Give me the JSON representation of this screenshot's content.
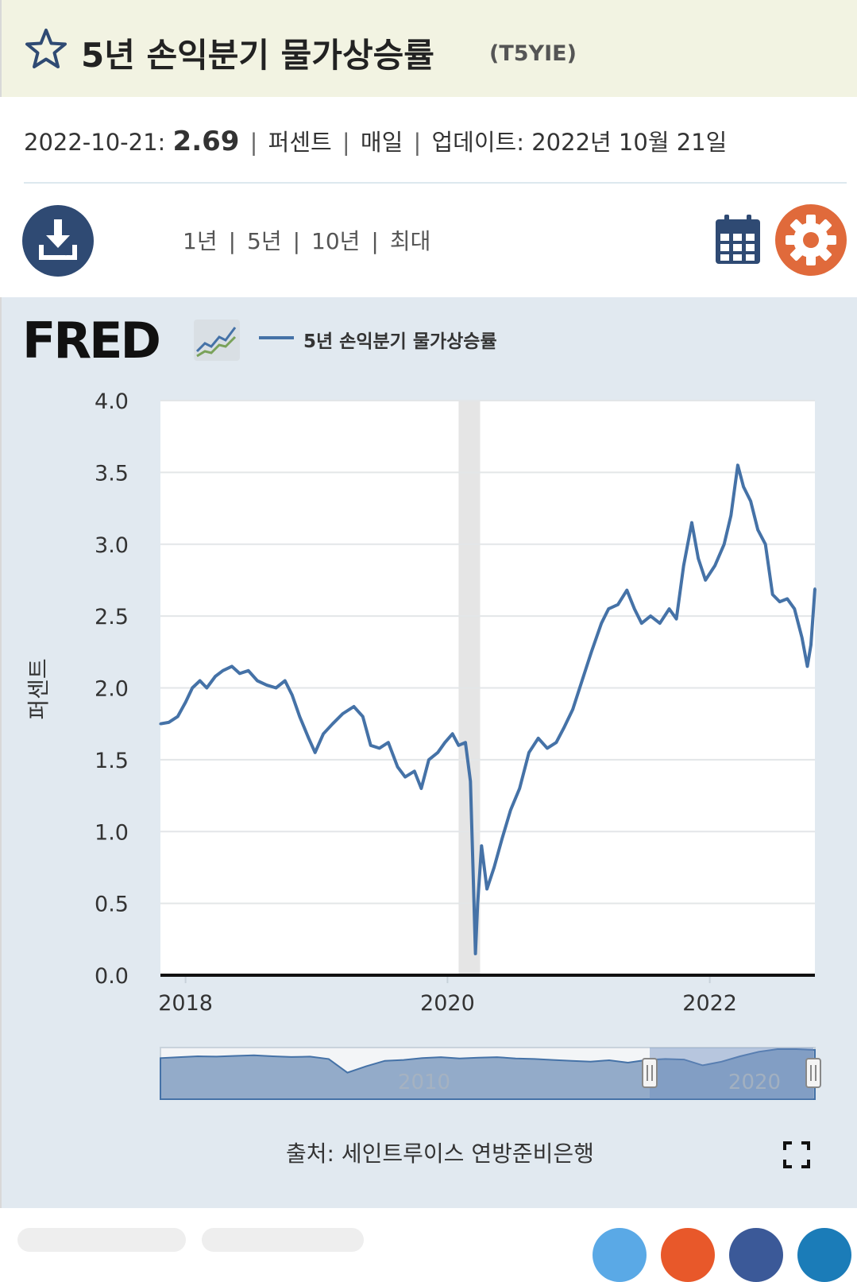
{
  "header": {
    "title": "5년 손익분기 물가상승률",
    "series_code": "(T5YIE)"
  },
  "meta": {
    "date": "2022-10-21:",
    "value": "2.69",
    "units": "퍼센트",
    "frequency": "매일",
    "updated_label": "업데이트:",
    "updated_value": "2022년 10월 21일",
    "sep": "|"
  },
  "toolbar": {
    "ranges": [
      "1년",
      "5년",
      "10년",
      "최대"
    ],
    "download_icon": "download-icon",
    "calendar_icon": "calendar-icon",
    "settings_icon": "gear-icon"
  },
  "logo": {
    "text": "FRED"
  },
  "colors": {
    "series": "#4572a7",
    "recession": "#e5e5e5",
    "settings": "#e06a3b",
    "download": "#2f4a73",
    "panel": "#e1e9f0"
  },
  "chart_data": {
    "type": "line",
    "title": "",
    "xlabel": "",
    "ylabel": "퍼센트",
    "ylim": [
      0,
      4.0
    ],
    "y_ticks": [
      "0.0",
      "0.5",
      "1.0",
      "1.5",
      "2.0",
      "2.5",
      "3.0",
      "3.5",
      "4.0"
    ],
    "x_ticks": [
      "2018",
      "2020",
      "2022"
    ],
    "grid": true,
    "legend_position": "top",
    "recession_shading": [
      [
        "2020-02",
        "2020-04"
      ]
    ],
    "series": [
      {
        "name": "5년 손익분기 물가상승률",
        "color": "#4572a7",
        "points": [
          [
            "2017-10-23",
            1.75
          ],
          [
            "2017-11-15",
            1.76
          ],
          [
            "2017-12-10",
            1.8
          ],
          [
            "2018-01-01",
            1.9
          ],
          [
            "2018-01-20",
            2.0
          ],
          [
            "2018-02-10",
            2.05
          ],
          [
            "2018-03-01",
            2.0
          ],
          [
            "2018-03-25",
            2.08
          ],
          [
            "2018-04-15",
            2.12
          ],
          [
            "2018-05-10",
            2.15
          ],
          [
            "2018-06-01",
            2.1
          ],
          [
            "2018-06-25",
            2.12
          ],
          [
            "2018-07-20",
            2.05
          ],
          [
            "2018-08-15",
            2.02
          ],
          [
            "2018-09-10",
            2.0
          ],
          [
            "2018-10-05",
            2.05
          ],
          [
            "2018-10-25",
            1.95
          ],
          [
            "2018-11-15",
            1.8
          ],
          [
            "2018-12-10",
            1.65
          ],
          [
            "2018-12-28",
            1.55
          ],
          [
            "2019-01-20",
            1.68
          ],
          [
            "2019-02-15",
            1.75
          ],
          [
            "2019-03-15",
            1.82
          ],
          [
            "2019-04-15",
            1.87
          ],
          [
            "2019-05-10",
            1.8
          ],
          [
            "2019-06-01",
            1.6
          ],
          [
            "2019-06-25",
            1.58
          ],
          [
            "2019-07-20",
            1.62
          ],
          [
            "2019-08-15",
            1.45
          ],
          [
            "2019-09-05",
            1.38
          ],
          [
            "2019-10-01",
            1.42
          ],
          [
            "2019-10-20",
            1.3
          ],
          [
            "2019-11-10",
            1.5
          ],
          [
            "2019-12-05",
            1.55
          ],
          [
            "2019-12-25",
            1.62
          ],
          [
            "2020-01-15",
            1.68
          ],
          [
            "2020-02-01",
            1.6
          ],
          [
            "2020-02-20",
            1.62
          ],
          [
            "2020-03-05",
            1.35
          ],
          [
            "2020-03-12",
            0.75
          ],
          [
            "2020-03-19",
            0.15
          ],
          [
            "2020-03-25",
            0.5
          ],
          [
            "2020-04-05",
            0.9
          ],
          [
            "2020-04-20",
            0.6
          ],
          [
            "2020-05-10",
            0.75
          ],
          [
            "2020-06-01",
            0.95
          ],
          [
            "2020-06-25",
            1.15
          ],
          [
            "2020-07-20",
            1.3
          ],
          [
            "2020-08-15",
            1.55
          ],
          [
            "2020-09-10",
            1.65
          ],
          [
            "2020-10-05",
            1.58
          ],
          [
            "2020-10-30",
            1.62
          ],
          [
            "2020-11-20",
            1.72
          ],
          [
            "2020-12-15",
            1.85
          ],
          [
            "2021-01-10",
            2.05
          ],
          [
            "2021-02-05",
            2.25
          ],
          [
            "2021-03-05",
            2.45
          ],
          [
            "2021-03-25",
            2.55
          ],
          [
            "2021-04-20",
            2.58
          ],
          [
            "2021-05-15",
            2.68
          ],
          [
            "2021-06-05",
            2.55
          ],
          [
            "2021-06-25",
            2.45
          ],
          [
            "2021-07-20",
            2.5
          ],
          [
            "2021-08-15",
            2.45
          ],
          [
            "2021-09-10",
            2.55
          ],
          [
            "2021-09-30",
            2.48
          ],
          [
            "2021-10-20",
            2.85
          ],
          [
            "2021-11-12",
            3.15
          ],
          [
            "2021-11-30",
            2.9
          ],
          [
            "2021-12-20",
            2.75
          ],
          [
            "2022-01-15",
            2.85
          ],
          [
            "2022-02-10",
            3.0
          ],
          [
            "2022-03-01",
            3.2
          ],
          [
            "2022-03-20",
            3.55
          ],
          [
            "2022-04-05",
            3.4
          ],
          [
            "2022-04-25",
            3.3
          ],
          [
            "2022-05-15",
            3.1
          ],
          [
            "2022-06-05",
            3.0
          ],
          [
            "2022-06-25",
            2.65
          ],
          [
            "2022-07-15",
            2.6
          ],
          [
            "2022-08-05",
            2.62
          ],
          [
            "2022-08-25",
            2.55
          ],
          [
            "2022-09-15",
            2.35
          ],
          [
            "2022-09-30",
            2.15
          ],
          [
            "2022-10-10",
            2.3
          ],
          [
            "2022-10-21",
            2.69
          ]
        ]
      }
    ],
    "navigator": {
      "x_labels": [
        "2010",
        "2020"
      ],
      "values": [
        2.0,
        2.05,
        2.1,
        2.08,
        2.12,
        2.15,
        2.1,
        2.06,
        2.08,
        1.95,
        1.2,
        1.55,
        1.85,
        1.9,
        2.0,
        2.05,
        1.98,
        2.02,
        2.05,
        1.98,
        1.95,
        1.9,
        1.85,
        1.8,
        1.88,
        1.75,
        1.9,
        1.95,
        1.92,
        1.6,
        1.8,
        2.1,
        2.35,
        2.5,
        2.7,
        2.45
      ]
    }
  },
  "footer": {
    "source": "출처: 세인트루이스 연방준비은행"
  }
}
